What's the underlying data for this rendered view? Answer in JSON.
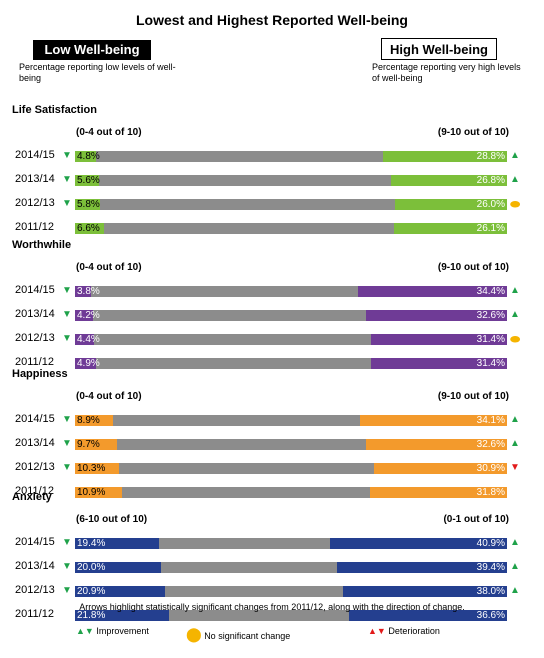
{
  "title": "Lowest and Highest Reported Well-being",
  "low_box": "Low Well-being",
  "high_box": "High Well-being",
  "low_desc": "Percentage reporting low levels of well-being",
  "high_desc": "Percentage reporting very high levels of well-being",
  "footer_note": "Arrows highlight statistically significant changes from 2011/12, along with the direction of change.",
  "legend": {
    "improvement": "Improvement",
    "no_change": "No significant change",
    "deterioration": "Deterioration"
  },
  "colors": {
    "neutral": "#8c8c8c",
    "life_satisfaction": "#7cbf3a",
    "worthwhile": "#6f3b96",
    "happiness": "#f39a2c",
    "anxiety": "#243f8f",
    "improvement": "#1fa24a",
    "no_change": "#f5b400",
    "deterioration": "#e21a1a"
  },
  "chart_data": {
    "type": "bar",
    "stacked": true,
    "orientation": "horizontal",
    "categories": [
      "2014/15",
      "2013/14",
      "2012/13",
      "2011/12"
    ],
    "groups": [
      {
        "name": "Life Satisfaction",
        "low_range": "(0-4 out of 10)",
        "high_range": "(9-10 out of 10)",
        "low_values": [
          4.8,
          5.6,
          5.8,
          6.6
        ],
        "high_values": [
          28.8,
          26.8,
          26.0,
          26.1
        ],
        "low_labels": [
          "4.8%",
          "5.6%",
          "5.8%",
          "6.6%"
        ],
        "high_labels": [
          "28.8%",
          "26.8%",
          "26.0%",
          "26.1%"
        ],
        "low_change": [
          "improvement",
          "improvement",
          "improvement",
          ""
        ],
        "high_change": [
          "improvement",
          "improvement",
          "no_change",
          ""
        ]
      },
      {
        "name": "Worthwhile",
        "low_range": "(0-4 out of 10)",
        "high_range": "(9-10 out of 10)",
        "low_values": [
          3.8,
          4.2,
          4.4,
          4.9
        ],
        "high_values": [
          34.4,
          32.6,
          31.4,
          31.4
        ],
        "low_labels": [
          "3.8%",
          "4.2%",
          "4.4%",
          "4.9%"
        ],
        "high_labels": [
          "34.4%",
          "32.6%",
          "31.4%",
          "31.4%"
        ],
        "low_change": [
          "improvement",
          "improvement",
          "improvement",
          ""
        ],
        "high_change": [
          "improvement",
          "improvement",
          "no_change",
          ""
        ]
      },
      {
        "name": "Happiness",
        "low_range": "(0-4 out of 10)",
        "high_range": "(9-10 out of 10)",
        "low_values": [
          8.9,
          9.7,
          10.3,
          10.9
        ],
        "high_values": [
          34.1,
          32.6,
          30.9,
          31.8
        ],
        "low_labels": [
          "8.9%",
          "9.7%",
          "10.3%",
          "10.9%"
        ],
        "high_labels": [
          "34.1%",
          "32.6%",
          "30.9%",
          "31.8%"
        ],
        "low_change": [
          "improvement",
          "improvement",
          "improvement",
          ""
        ],
        "high_change": [
          "improvement",
          "improvement",
          "deterioration",
          ""
        ]
      },
      {
        "name": "Anxiety",
        "low_range": "(6-10 out of 10)",
        "high_range": "(0-1 out of 10)",
        "low_values": [
          19.4,
          20.0,
          20.9,
          21.8
        ],
        "high_values": [
          40.9,
          39.4,
          38.0,
          36.6
        ],
        "low_labels": [
          "19.4%",
          "20.0%",
          "20.9%",
          "21.8%"
        ],
        "high_labels": [
          "40.9%",
          "39.4%",
          "38.0%",
          "36.6%"
        ],
        "low_change": [
          "improvement",
          "improvement",
          "improvement",
          ""
        ],
        "high_change": [
          "improvement",
          "improvement",
          "improvement",
          ""
        ]
      }
    ],
    "xlim": [
      0,
      100
    ]
  }
}
